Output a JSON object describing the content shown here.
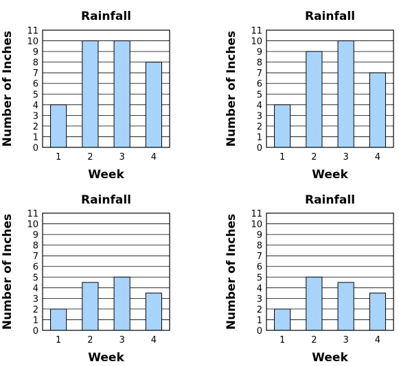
{
  "colors": {
    "bar_fill": "#a8d4fb",
    "bar_stroke": "#000000",
    "grid": "#000000"
  },
  "chart_data": [
    {
      "type": "bar",
      "title": "Rainfall",
      "xlabel": "Week",
      "ylabel": "Number of Inches",
      "categories": [
        "1",
        "2",
        "3",
        "4"
      ],
      "values": [
        4,
        10,
        10,
        8
      ],
      "yticks": [
        "0",
        "1",
        "2",
        "3",
        "4",
        "5",
        "6",
        "7",
        "8",
        "9",
        "10",
        "11"
      ],
      "ylim": [
        0,
        11
      ],
      "grid": true
    },
    {
      "type": "bar",
      "title": "Rainfall",
      "xlabel": "Week",
      "ylabel": "Number of Inches",
      "categories": [
        "1",
        "2",
        "3",
        "4"
      ],
      "values": [
        4,
        9,
        10,
        7
      ],
      "yticks": [
        "0",
        "1",
        "2",
        "3",
        "4",
        "5",
        "6",
        "7",
        "8",
        "9",
        "10",
        "11"
      ],
      "ylim": [
        0,
        11
      ],
      "grid": true
    },
    {
      "type": "bar",
      "title": "Rainfall",
      "xlabel": "Week",
      "ylabel": "Number of Inches",
      "categories": [
        "1",
        "2",
        "3",
        "4"
      ],
      "values": [
        2,
        4.5,
        5,
        3.5
      ],
      "yticks": [
        "0",
        "1",
        "2",
        "3",
        "4",
        "5",
        "6",
        "7",
        "8",
        "9",
        "10",
        "11"
      ],
      "ylim": [
        0,
        11
      ],
      "grid": true
    },
    {
      "type": "bar",
      "title": "Rainfall",
      "xlabel": "Week",
      "ylabel": "Number of Inches",
      "categories": [
        "1",
        "2",
        "3",
        "4"
      ],
      "values": [
        2,
        5,
        4.5,
        3.5
      ],
      "yticks": [
        "0",
        "1",
        "2",
        "3",
        "4",
        "5",
        "6",
        "7",
        "8",
        "9",
        "10",
        "11"
      ],
      "ylim": [
        0,
        11
      ],
      "grid": true
    }
  ]
}
